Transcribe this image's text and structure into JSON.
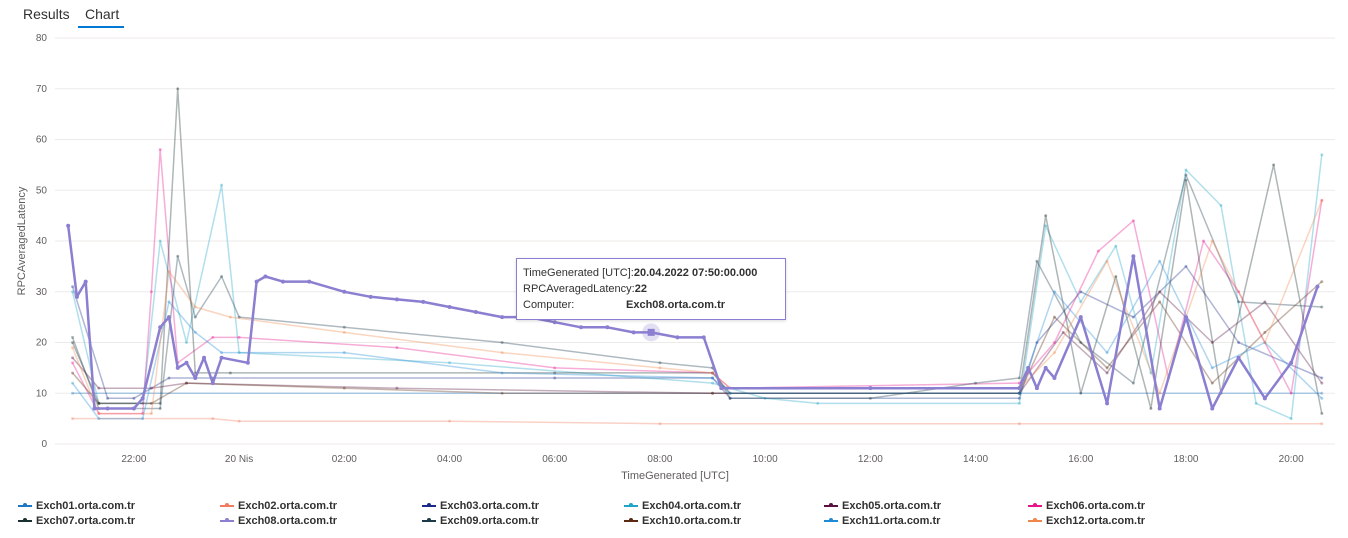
{
  "tabs": [
    {
      "label": "Results"
    },
    {
      "label": "Chart"
    }
  ],
  "chart_data": {
    "type": "line",
    "xlabel": "TimeGenerated [UTC]",
    "ylabel": "RPCAveragedLatency",
    "ylim": [
      0,
      80
    ],
    "yticks": [
      0,
      10,
      20,
      30,
      40,
      50,
      60,
      70,
      80
    ],
    "xlim": [
      "2022-04-19 20:30",
      "2022-04-20 20:50"
    ],
    "xticks": [
      {
        "t": "2022-04-19 22:00",
        "label": "22:00"
      },
      {
        "t": "2022-04-20 00:00",
        "label": "20 Nis"
      },
      {
        "t": "2022-04-20 02:00",
        "label": "02:00"
      },
      {
        "t": "2022-04-20 04:00",
        "label": "04:00"
      },
      {
        "t": "2022-04-20 06:00",
        "label": "06:00"
      },
      {
        "t": "2022-04-20 08:00",
        "label": "08:00"
      },
      {
        "t": "2022-04-20 10:00",
        "label": "10:00"
      },
      {
        "t": "2022-04-20 12:00",
        "label": "12:00"
      },
      {
        "t": "2022-04-20 14:00",
        "label": "14:00"
      },
      {
        "t": "2022-04-20 16:00",
        "label": "16:00"
      },
      {
        "t": "2022-04-20 18:00",
        "label": "18:00"
      },
      {
        "t": "2022-04-20 20:00",
        "label": "20:00"
      }
    ],
    "grid": true,
    "legend": "bottom",
    "highlighted_series": "Exch08.orta.com.tr",
    "series": [
      {
        "name": "Exch01.orta.com.tr",
        "color": "#1f77c4",
        "opacity": 0.35,
        "points": [
          [
            "2022-04-19 20:50",
            10
          ],
          [
            "2022-04-20 14:50",
            10
          ],
          [
            "2022-04-20 20:35",
            10
          ]
        ]
      },
      {
        "name": "Exch02.orta.com.tr",
        "color": "#f27a5e",
        "opacity": 0.35,
        "points": [
          [
            "2022-04-19 20:50",
            5
          ],
          [
            "2022-04-19 23:30",
            5
          ],
          [
            "2022-04-20 00:00",
            4.5
          ],
          [
            "2022-04-20 04:00",
            4.5
          ],
          [
            "2022-04-20 08:00",
            4
          ],
          [
            "2022-04-20 14:50",
            4
          ],
          [
            "2022-04-20 20:35",
            4
          ]
        ]
      },
      {
        "name": "Exch03.orta.com.tr",
        "color": "#1b2a8a",
        "opacity": 0.35,
        "points": [
          [
            "2022-04-19 20:50",
            31
          ],
          [
            "2022-04-19 21:10",
            20
          ],
          [
            "2022-04-19 21:30",
            9
          ],
          [
            "2022-04-19 22:00",
            9
          ],
          [
            "2022-04-19 22:40",
            13
          ],
          [
            "2022-04-19 23:30",
            13
          ],
          [
            "2022-04-20 06:00",
            13
          ],
          [
            "2022-04-20 09:00",
            13
          ],
          [
            "2022-04-20 09:20",
            9
          ],
          [
            "2022-04-20 14:50",
            9
          ],
          [
            "2022-04-20 15:10",
            20
          ],
          [
            "2022-04-20 16:00",
            30
          ],
          [
            "2022-04-20 17:00",
            25
          ],
          [
            "2022-04-20 18:00",
            35
          ],
          [
            "2022-04-20 19:00",
            20
          ],
          [
            "2022-04-20 20:35",
            13
          ]
        ]
      },
      {
        "name": "Exch04.orta.com.tr",
        "color": "#1fa3c9",
        "opacity": 0.35,
        "points": [
          [
            "2022-04-19 20:50",
            30
          ],
          [
            "2022-04-19 21:20",
            8
          ],
          [
            "2022-04-19 22:10",
            8
          ],
          [
            "2022-04-19 22:30",
            40
          ],
          [
            "2022-04-19 23:00",
            20
          ],
          [
            "2022-04-19 23:40",
            51
          ],
          [
            "2022-04-20 00:00",
            18
          ],
          [
            "2022-04-20 04:00",
            16
          ],
          [
            "2022-04-20 09:00",
            12
          ],
          [
            "2022-04-20 10:00",
            9
          ],
          [
            "2022-04-20 11:00",
            8
          ],
          [
            "2022-04-20 14:50",
            8
          ],
          [
            "2022-04-20 15:20",
            43
          ],
          [
            "2022-04-20 16:00",
            28
          ],
          [
            "2022-04-20 16:40",
            39
          ],
          [
            "2022-04-20 17:20",
            14
          ],
          [
            "2022-04-20 18:00",
            54
          ],
          [
            "2022-04-20 18:40",
            47
          ],
          [
            "2022-04-20 19:20",
            8
          ],
          [
            "2022-04-20 20:00",
            5
          ],
          [
            "2022-04-20 20:35",
            57
          ]
        ]
      },
      {
        "name": "Exch05.orta.com.tr",
        "color": "#5a1040",
        "opacity": 0.35,
        "points": [
          [
            "2022-04-19 20:50",
            17
          ],
          [
            "2022-04-19 21:20",
            11
          ],
          [
            "2022-04-19 22:20",
            11
          ],
          [
            "2022-04-19 23:00",
            12
          ],
          [
            "2022-04-20 03:00",
            11
          ],
          [
            "2022-04-20 09:00",
            10
          ],
          [
            "2022-04-20 14:50",
            10
          ],
          [
            "2022-04-20 15:40",
            22
          ],
          [
            "2022-04-20 16:30",
            14
          ],
          [
            "2022-04-20 17:30",
            30
          ],
          [
            "2022-04-20 18:30",
            20
          ],
          [
            "2022-04-20 19:30",
            28
          ],
          [
            "2022-04-20 20:35",
            12
          ]
        ]
      },
      {
        "name": "Exch06.orta.com.tr",
        "color": "#e6148e",
        "opacity": 0.35,
        "points": [
          [
            "2022-04-19 20:50",
            16
          ],
          [
            "2022-04-19 21:20",
            6
          ],
          [
            "2022-04-19 22:10",
            6
          ],
          [
            "2022-04-19 22:20",
            30
          ],
          [
            "2022-04-19 22:30",
            58
          ],
          [
            "2022-04-19 22:50",
            16
          ],
          [
            "2022-04-19 23:30",
            21
          ],
          [
            "2022-04-20 00:00",
            21
          ],
          [
            "2022-04-20 03:00",
            19
          ],
          [
            "2022-04-20 06:00",
            15
          ],
          [
            "2022-04-20 09:00",
            14
          ],
          [
            "2022-04-20 09:20",
            11
          ],
          [
            "2022-04-20 14:50",
            12
          ],
          [
            "2022-04-20 15:30",
            20
          ],
          [
            "2022-04-20 16:20",
            38
          ],
          [
            "2022-04-20 17:00",
            44
          ],
          [
            "2022-04-20 17:40",
            13
          ],
          [
            "2022-04-20 18:20",
            40
          ],
          [
            "2022-04-20 19:00",
            30
          ],
          [
            "2022-04-20 20:00",
            10
          ],
          [
            "2022-04-20 20:35",
            48
          ]
        ]
      },
      {
        "name": "Exch07.orta.com.tr",
        "color": "#1a2f2f",
        "opacity": 0.35,
        "points": [
          [
            "2022-04-19 20:50",
            20
          ],
          [
            "2022-04-19 21:20",
            8
          ],
          [
            "2022-04-19 22:30",
            8
          ],
          [
            "2022-04-19 22:50",
            70
          ],
          [
            "2022-04-19 23:10",
            14
          ],
          [
            "2022-04-19 23:50",
            14
          ],
          [
            "2022-04-20 06:00",
            14
          ],
          [
            "2022-04-20 09:00",
            14
          ],
          [
            "2022-04-20 09:20",
            10
          ],
          [
            "2022-04-20 14:50",
            10
          ],
          [
            "2022-04-20 15:20",
            45
          ],
          [
            "2022-04-20 16:00",
            10
          ],
          [
            "2022-04-20 16:40",
            33
          ],
          [
            "2022-04-20 17:20",
            7
          ],
          [
            "2022-04-20 18:00",
            52
          ],
          [
            "2022-04-20 18:40",
            10
          ],
          [
            "2022-04-20 19:40",
            55
          ],
          [
            "2022-04-20 20:35",
            6
          ]
        ]
      },
      {
        "name": "Exch08.orta.com.tr",
        "color": "#8a7fd0",
        "opacity": 1,
        "points": [
          [
            "2022-04-19 20:45",
            43
          ],
          [
            "2022-04-19 20:55",
            29
          ],
          [
            "2022-04-19 21:05",
            32
          ],
          [
            "2022-04-19 21:15",
            7
          ],
          [
            "2022-04-19 21:30",
            7
          ],
          [
            "2022-04-19 22:00",
            7
          ],
          [
            "2022-04-19 22:10",
            9
          ],
          [
            "2022-04-19 22:30",
            23
          ],
          [
            "2022-04-19 22:40",
            25
          ],
          [
            "2022-04-19 22:50",
            15
          ],
          [
            "2022-04-19 23:00",
            16
          ],
          [
            "2022-04-19 23:10",
            13
          ],
          [
            "2022-04-19 23:20",
            17
          ],
          [
            "2022-04-19 23:30",
            12
          ],
          [
            "2022-04-19 23:40",
            17
          ],
          [
            "2022-04-20 00:10",
            16
          ],
          [
            "2022-04-20 00:20",
            32
          ],
          [
            "2022-04-20 00:30",
            33
          ],
          [
            "2022-04-20 00:50",
            32
          ],
          [
            "2022-04-20 01:20",
            32
          ],
          [
            "2022-04-20 02:00",
            30
          ],
          [
            "2022-04-20 02:30",
            29
          ],
          [
            "2022-04-20 03:00",
            28.5
          ],
          [
            "2022-04-20 03:30",
            28
          ],
          [
            "2022-04-20 04:00",
            27
          ],
          [
            "2022-04-20 04:30",
            26
          ],
          [
            "2022-04-20 05:00",
            25
          ],
          [
            "2022-04-20 05:30",
            25
          ],
          [
            "2022-04-20 06:00",
            24
          ],
          [
            "2022-04-20 06:30",
            23
          ],
          [
            "2022-04-20 07:00",
            23
          ],
          [
            "2022-04-20 07:30",
            22
          ],
          [
            "2022-04-20 07:50",
            22
          ],
          [
            "2022-04-20 08:20",
            21
          ],
          [
            "2022-04-20 08:50",
            21
          ],
          [
            "2022-04-20 09:10",
            11
          ],
          [
            "2022-04-20 12:00",
            11
          ],
          [
            "2022-04-20 14:50",
            11
          ],
          [
            "2022-04-20 15:00",
            15
          ],
          [
            "2022-04-20 15:10",
            11
          ],
          [
            "2022-04-20 15:20",
            15
          ],
          [
            "2022-04-20 15:30",
            13
          ],
          [
            "2022-04-20 16:00",
            25
          ],
          [
            "2022-04-20 16:30",
            8
          ],
          [
            "2022-04-20 17:00",
            37
          ],
          [
            "2022-04-20 17:30",
            7
          ],
          [
            "2022-04-20 18:00",
            25
          ],
          [
            "2022-04-20 18:30",
            7
          ],
          [
            "2022-04-20 19:00",
            17
          ],
          [
            "2022-04-20 19:30",
            9
          ],
          [
            "2022-04-20 20:00",
            16
          ],
          [
            "2022-04-20 20:30",
            31
          ]
        ]
      },
      {
        "name": "Exch09.orta.com.tr",
        "color": "#1a3a4a",
        "opacity": 0.35,
        "points": [
          [
            "2022-04-19 20:50",
            21
          ],
          [
            "2022-04-19 21:20",
            7
          ],
          [
            "2022-04-19 22:30",
            7
          ],
          [
            "2022-04-19 22:50",
            37
          ],
          [
            "2022-04-19 23:10",
            25
          ],
          [
            "2022-04-19 23:40",
            33
          ],
          [
            "2022-04-20 00:00",
            25
          ],
          [
            "2022-04-20 02:00",
            23
          ],
          [
            "2022-04-20 05:00",
            20
          ],
          [
            "2022-04-20 08:00",
            16
          ],
          [
            "2022-04-20 09:00",
            15
          ],
          [
            "2022-04-20 09:20",
            9
          ],
          [
            "2022-04-20 12:00",
            9
          ],
          [
            "2022-04-20 14:00",
            12
          ],
          [
            "2022-04-20 14:50",
            13
          ],
          [
            "2022-04-20 15:10",
            36
          ],
          [
            "2022-04-20 16:00",
            20
          ],
          [
            "2022-04-20 17:00",
            12
          ],
          [
            "2022-04-20 18:00",
            53
          ],
          [
            "2022-04-20 19:00",
            28
          ],
          [
            "2022-04-20 20:35",
            27
          ]
        ]
      },
      {
        "name": "Exch10.orta.com.tr",
        "color": "#5a2a10",
        "opacity": 0.35,
        "points": [
          [
            "2022-04-19 20:50",
            14
          ],
          [
            "2022-04-19 21:20",
            8
          ],
          [
            "2022-04-19 22:20",
            8
          ],
          [
            "2022-04-19 23:00",
            12
          ],
          [
            "2022-04-20 02:00",
            11
          ],
          [
            "2022-04-20 05:00",
            10
          ],
          [
            "2022-04-20 09:00",
            10
          ],
          [
            "2022-04-20 14:50",
            10
          ],
          [
            "2022-04-20 15:30",
            25
          ],
          [
            "2022-04-20 16:30",
            15
          ],
          [
            "2022-04-20 17:30",
            28
          ],
          [
            "2022-04-20 18:30",
            12
          ],
          [
            "2022-04-20 19:30",
            22
          ],
          [
            "2022-04-20 20:35",
            32
          ]
        ]
      },
      {
        "name": "Exch11.orta.com.tr",
        "color": "#1f8ad6",
        "opacity": 0.35,
        "points": [
          [
            "2022-04-19 20:50",
            12
          ],
          [
            "2022-04-19 21:20",
            5
          ],
          [
            "2022-04-19 22:10",
            5
          ],
          [
            "2022-04-19 22:40",
            28
          ],
          [
            "2022-04-19 23:10",
            22
          ],
          [
            "2022-04-19 23:40",
            18
          ],
          [
            "2022-04-20 02:00",
            18
          ],
          [
            "2022-04-20 05:00",
            14
          ],
          [
            "2022-04-20 09:00",
            13
          ],
          [
            "2022-04-20 09:20",
            10
          ],
          [
            "2022-04-20 14:50",
            10
          ],
          [
            "2022-04-20 15:30",
            30
          ],
          [
            "2022-04-20 16:30",
            18
          ],
          [
            "2022-04-20 17:30",
            36
          ],
          [
            "2022-04-20 18:30",
            15
          ],
          [
            "2022-04-20 19:30",
            20
          ],
          [
            "2022-04-20 20:35",
            9
          ]
        ]
      },
      {
        "name": "Exch12.orta.com.tr",
        "color": "#f0864a",
        "opacity": 0.35,
        "points": [
          [
            "2022-04-19 20:50",
            19
          ],
          [
            "2022-04-19 21:20",
            6
          ],
          [
            "2022-04-19 22:20",
            6
          ],
          [
            "2022-04-19 22:40",
            34
          ],
          [
            "2022-04-19 23:10",
            27
          ],
          [
            "2022-04-19 23:50",
            25
          ],
          [
            "2022-04-20 02:00",
            22
          ],
          [
            "2022-04-20 05:00",
            18
          ],
          [
            "2022-04-20 08:00",
            15
          ],
          [
            "2022-04-20 09:00",
            14
          ],
          [
            "2022-04-20 09:20",
            11
          ],
          [
            "2022-04-20 14:50",
            11
          ],
          [
            "2022-04-20 15:30",
            18
          ],
          [
            "2022-04-20 16:30",
            36
          ],
          [
            "2022-04-20 17:30",
            10
          ],
          [
            "2022-04-20 18:30",
            40
          ],
          [
            "2022-04-20 19:30",
            20
          ],
          [
            "2022-04-20 20:35",
            48
          ]
        ]
      }
    ]
  },
  "tooltip": {
    "time_label": "TimeGenerated [UTC]:",
    "time_value": "20.04.2022 07:50:00.000",
    "metric_label": "RPCAveragedLatency:",
    "metric_value": "22",
    "computer_label": "Computer:",
    "computer_value": "Exch08.orta.com.tr",
    "point": [
      "2022-04-20 07:50",
      22
    ]
  }
}
